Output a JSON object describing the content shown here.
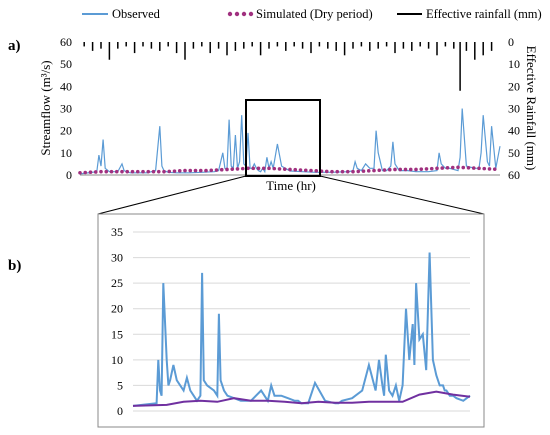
{
  "figure": {
    "panel_a_label": "a)",
    "panel_b_label": "b)",
    "colors": {
      "observed": "#5b9bd5",
      "simulated": "#a0307f",
      "rainfall": "#000000",
      "simulated_line_b": "#7030a0"
    }
  },
  "chart_data": [
    {
      "type": "line",
      "panel": "a",
      "xlabel": "Time (hr)",
      "ylabel": "Streamflow (m³/s)",
      "y2label": "Effective Rainfall (mm)",
      "ylim": [
        0,
        60
      ],
      "y2lim": [
        60,
        0
      ],
      "y2_inverted": true,
      "yticks": [
        "0",
        "10",
        "20",
        "30",
        "40",
        "50",
        "60"
      ],
      "y2ticks": [
        "0",
        "10",
        "20",
        "30",
        "40",
        "50",
        "60"
      ],
      "legend_position": "top",
      "series": [
        {
          "name": "Observed",
          "style": "line",
          "color": "#5b9bd5",
          "x": [
            0.0,
            0.04,
            0.045,
            0.05,
            0.055,
            0.06,
            0.07,
            0.09,
            0.1,
            0.105,
            0.11,
            0.12,
            0.14,
            0.16,
            0.18,
            0.19,
            0.195,
            0.2,
            0.21,
            0.23,
            0.26,
            0.29,
            0.32,
            0.33,
            0.34,
            0.345,
            0.35,
            0.355,
            0.36,
            0.365,
            0.37,
            0.375,
            0.38,
            0.385,
            0.39,
            0.395,
            0.4,
            0.405,
            0.41,
            0.415,
            0.42,
            0.425,
            0.43,
            0.435,
            0.44,
            0.445,
            0.45,
            0.455,
            0.46,
            0.47,
            0.48,
            0.5,
            0.53,
            0.56,
            0.6,
            0.64,
            0.65,
            0.655,
            0.66,
            0.67,
            0.68,
            0.69,
            0.7,
            0.705,
            0.71,
            0.72,
            0.73,
            0.74,
            0.745,
            0.75,
            0.76,
            0.78,
            0.8,
            0.83,
            0.85,
            0.855,
            0.86,
            0.87,
            0.88,
            0.9,
            0.905,
            0.91,
            0.92,
            0.94,
            0.95,
            0.955,
            0.96,
            0.97,
            0.975,
            0.98,
            0.99,
            1.0
          ],
          "y": [
            0.5,
            1.5,
            9,
            4,
            16,
            3,
            1.5,
            1.5,
            5,
            2,
            1.5,
            1,
            1,
            1,
            2,
            22,
            4,
            2,
            1.2,
            1,
            1,
            1.2,
            1.5,
            2,
            10,
            3,
            2.5,
            25,
            4,
            3,
            18,
            3,
            6,
            27,
            5,
            4,
            19,
            3,
            3,
            5,
            3,
            2,
            1.5,
            3,
            1.5,
            8,
            3,
            6,
            3,
            14,
            4,
            1.8,
            1.5,
            1.2,
            1.2,
            1.5,
            2,
            6,
            3,
            2,
            5,
            3,
            3,
            20,
            10,
            2,
            2,
            4,
            15,
            5,
            2,
            2,
            1.5,
            1.5,
            2,
            10,
            5,
            3,
            3,
            2,
            8,
            30,
            4,
            3,
            3,
            10,
            27,
            6,
            4,
            22,
            3,
            13
          ]
        },
        {
          "name": "Simulated (Dry period)",
          "style": "dots",
          "color": "#a0307f",
          "x": [
            0.0,
            0.05,
            0.1,
            0.15,
            0.2,
            0.25,
            0.3,
            0.35,
            0.4,
            0.45,
            0.5,
            0.55,
            0.6,
            0.65,
            0.7,
            0.75,
            0.8,
            0.85,
            0.9,
            0.95,
            1.0
          ],
          "y": [
            1,
            1.5,
            1.5,
            1.5,
            1.5,
            2,
            2,
            2.5,
            3,
            3,
            2.5,
            2,
            1.5,
            1.5,
            2,
            2.5,
            2.5,
            3,
            3.5,
            3,
            2.5
          ]
        },
        {
          "name": "Effective rainfall (mm)",
          "style": "bars-from-top",
          "color": "#000000",
          "x": [
            0.01,
            0.03,
            0.05,
            0.07,
            0.09,
            0.11,
            0.13,
            0.15,
            0.17,
            0.19,
            0.21,
            0.23,
            0.25,
            0.27,
            0.29,
            0.31,
            0.33,
            0.35,
            0.37,
            0.39,
            0.41,
            0.43,
            0.45,
            0.47,
            0.49,
            0.51,
            0.53,
            0.55,
            0.57,
            0.59,
            0.61,
            0.63,
            0.65,
            0.67,
            0.69,
            0.71,
            0.73,
            0.75,
            0.77,
            0.79,
            0.81,
            0.83,
            0.85,
            0.87,
            0.89,
            0.905,
            0.92,
            0.94,
            0.96,
            0.98
          ],
          "y": [
            2,
            4,
            3,
            8,
            3,
            2,
            5,
            2,
            3,
            4,
            2,
            5,
            8,
            3,
            2,
            5,
            3,
            6,
            4,
            3,
            2,
            6,
            3,
            2,
            4,
            2,
            3,
            5,
            2,
            3,
            4,
            6,
            3,
            2,
            4,
            3,
            2,
            5,
            3,
            4,
            2,
            3,
            6,
            2,
            3,
            22,
            4,
            8,
            6,
            4
          ]
        }
      ]
    },
    {
      "type": "line",
      "panel": "b",
      "ylim": [
        0,
        35
      ],
      "yticks": [
        "0",
        "5",
        "10",
        "15",
        "20",
        "25",
        "30",
        "35"
      ],
      "series": [
        {
          "name": "Observed",
          "style": "line",
          "color": "#5b9bd5",
          "x": [
            0.0,
            0.07,
            0.075,
            0.08,
            0.085,
            0.09,
            0.1,
            0.105,
            0.11,
            0.12,
            0.13,
            0.14,
            0.15,
            0.16,
            0.17,
            0.18,
            0.19,
            0.2,
            0.205,
            0.21,
            0.22,
            0.24,
            0.25,
            0.255,
            0.26,
            0.27,
            0.28,
            0.3,
            0.32,
            0.35,
            0.38,
            0.4,
            0.41,
            0.42,
            0.44,
            0.46,
            0.48,
            0.49,
            0.5,
            0.52,
            0.54,
            0.57,
            0.6,
            0.61,
            0.62,
            0.65,
            0.68,
            0.7,
            0.72,
            0.73,
            0.74,
            0.745,
            0.75,
            0.76,
            0.77,
            0.78,
            0.79,
            0.8,
            0.81,
            0.82,
            0.83,
            0.835,
            0.84,
            0.85,
            0.86,
            0.87,
            0.88,
            0.89,
            0.9,
            0.91,
            0.92,
            0.925,
            0.93,
            0.935,
            0.94,
            0.95,
            0.96,
            0.98,
            1.0
          ],
          "y": [
            1,
            1.5,
            10,
            4,
            3,
            25,
            10,
            5,
            6,
            9,
            6,
            5,
            4,
            6.5,
            4,
            3,
            2,
            3,
            27,
            6,
            5,
            4,
            3,
            19,
            6,
            4,
            3,
            2.5,
            2,
            2,
            4,
            2,
            5,
            3,
            3,
            2.5,
            2,
            2,
            1.5,
            1.5,
            5.5,
            2,
            1.5,
            1.5,
            2,
            2.5,
            4,
            9,
            4,
            10,
            5,
            3,
            11,
            4,
            3,
            5,
            2,
            5,
            20,
            10,
            17,
            9,
            25,
            14,
            15,
            8,
            31,
            10,
            7,
            5,
            5,
            4,
            4,
            3.5,
            3,
            3,
            2.5,
            2,
            3
          ]
        },
        {
          "name": "Simulated (Dry period)",
          "style": "line",
          "color": "#7030a0",
          "x": [
            0.0,
            0.1,
            0.15,
            0.2,
            0.25,
            0.3,
            0.35,
            0.4,
            0.45,
            0.5,
            0.55,
            0.6,
            0.65,
            0.7,
            0.75,
            0.8,
            0.85,
            0.9,
            0.95,
            1.0
          ],
          "y": [
            1,
            1.2,
            1.8,
            2,
            1.8,
            2.5,
            2,
            2,
            1.8,
            1.5,
            1.8,
            1.6,
            1.6,
            1.8,
            1.8,
            1.8,
            3.2,
            3.8,
            3.2,
            2.8
          ]
        }
      ]
    }
  ]
}
